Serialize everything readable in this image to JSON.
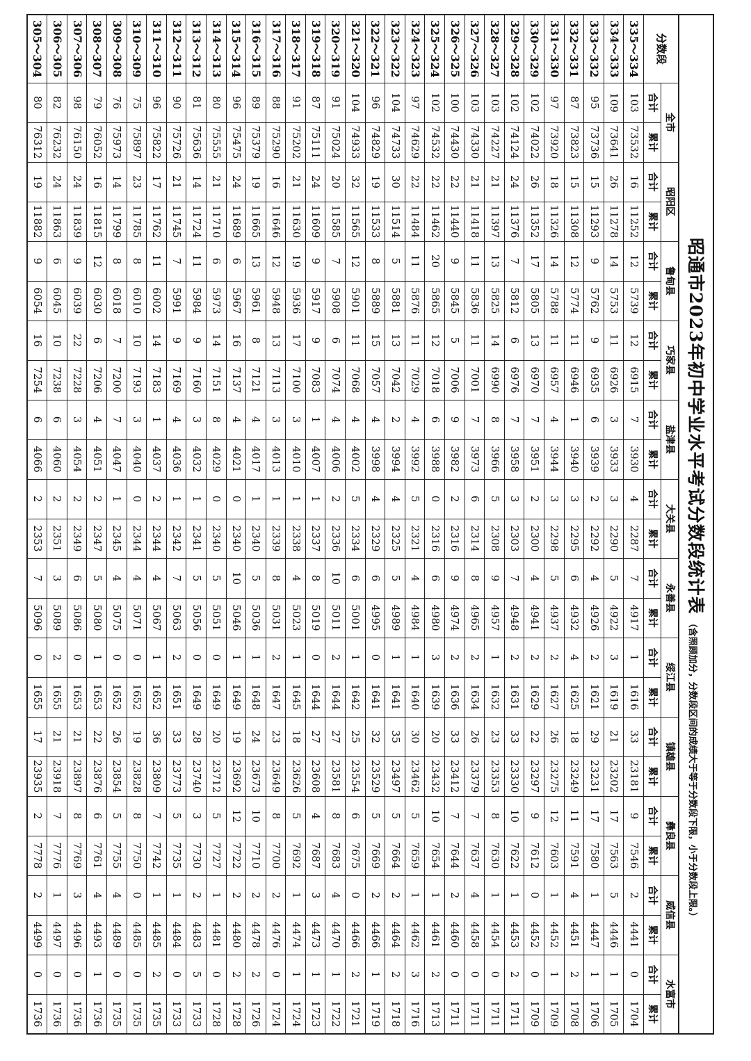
{
  "title": "昭通市2023年初中学业水平考试分数段统计表",
  "note": "（含照顾加分，分数段区间的成绩大于等于分数段下限，小于分数段上限。）",
  "header": {
    "score_label": "分数段",
    "regions": [
      "全市",
      "昭阳区",
      "鲁甸县",
      "巧家县",
      "盐津县",
      "大关县",
      "永善县",
      "绥江县",
      "镇雄县",
      "彝良县",
      "威信县",
      "水富市"
    ],
    "total_label": "合计",
    "cumulative_label": "累计"
  },
  "rows": [
    {
      "score": "335～334",
      "values": [
        103,
        73532,
        16,
        11252,
        12,
        5739,
        12,
        6915,
        7,
        3930,
        4,
        2287,
        7,
        4917,
        1,
        1616,
        33,
        23181,
        9,
        7546,
        2,
        4441,
        0,
        1704
      ]
    },
    {
      "score": "334～333",
      "values": [
        109,
        73641,
        26,
        11278,
        14,
        5753,
        11,
        6926,
        3,
        3933,
        3,
        2290,
        5,
        4922,
        3,
        1619,
        21,
        23202,
        17,
        7563,
        5,
        4446,
        1,
        1705
      ]
    },
    {
      "score": "333～332",
      "values": [
        95,
        73736,
        15,
        11293,
        9,
        5762,
        9,
        6935,
        6,
        3939,
        2,
        2292,
        4,
        4926,
        2,
        1621,
        29,
        23231,
        17,
        7580,
        1,
        4447,
        1,
        1706
      ]
    },
    {
      "score": "332～331",
      "values": [
        87,
        73823,
        15,
        11308,
        12,
        5774,
        11,
        6946,
        1,
        3940,
        3,
        2295,
        6,
        4932,
        4,
        1625,
        18,
        23249,
        11,
        7591,
        4,
        4451,
        2,
        1708
      ]
    },
    {
      "score": "331～330",
      "values": [
        97,
        73920,
        18,
        11326,
        14,
        5788,
        11,
        6957,
        4,
        3944,
        3,
        2298,
        5,
        4937,
        2,
        1627,
        26,
        23275,
        12,
        7603,
        1,
        4452,
        1,
        1709
      ]
    },
    {
      "score": "330～329",
      "values": [
        102,
        74022,
        26,
        11352,
        17,
        5805,
        13,
        6970,
        7,
        3951,
        2,
        2300,
        4,
        4941,
        2,
        1629,
        22,
        23297,
        9,
        7612,
        0,
        4452,
        0,
        1709
      ]
    },
    {
      "score": "329～328",
      "values": [
        102,
        74124,
        24,
        11376,
        7,
        5812,
        6,
        6976,
        7,
        3958,
        3,
        2303,
        7,
        4948,
        2,
        1631,
        33,
        23330,
        10,
        7622,
        1,
        4453,
        2,
        1711
      ]
    },
    {
      "score": "328～327",
      "values": [
        103,
        74227,
        21,
        11397,
        13,
        5825,
        14,
        6990,
        8,
        3966,
        5,
        2308,
        9,
        4957,
        1,
        1632,
        23,
        23353,
        8,
        7630,
        1,
        4454,
        0,
        1711
      ]
    },
    {
      "score": "327～326",
      "values": [
        103,
        74330,
        21,
        11418,
        11,
        5836,
        11,
        7001,
        7,
        3973,
        6,
        2314,
        8,
        4965,
        2,
        1634,
        26,
        23379,
        7,
        7637,
        4,
        4458,
        0,
        1711
      ]
    },
    {
      "score": "326～325",
      "values": [
        100,
        74430,
        22,
        11440,
        9,
        5845,
        5,
        7006,
        9,
        3982,
        2,
        2316,
        9,
        4974,
        2,
        1636,
        33,
        23412,
        7,
        7644,
        2,
        4460,
        0,
        1711
      ]
    },
    {
      "score": "325～324",
      "values": [
        102,
        74532,
        22,
        11462,
        20,
        5865,
        12,
        7018,
        6,
        3988,
        0,
        2316,
        6,
        4980,
        3,
        1639,
        20,
        23432,
        10,
        7654,
        1,
        4461,
        2,
        1713
      ]
    },
    {
      "score": "324～323",
      "values": [
        97,
        74629,
        22,
        11484,
        11,
        5876,
        11,
        7029,
        4,
        3992,
        5,
        2321,
        4,
        4984,
        1,
        1640,
        30,
        23462,
        5,
        7659,
        1,
        4462,
        3,
        1716
      ]
    },
    {
      "score": "323～322",
      "values": [
        104,
        74733,
        30,
        11514,
        5,
        5881,
        13,
        7042,
        2,
        3994,
        4,
        2325,
        5,
        4989,
        1,
        1641,
        35,
        23497,
        5,
        7664,
        2,
        4464,
        2,
        1718
      ]
    },
    {
      "score": "322～321",
      "values": [
        96,
        74829,
        19,
        11533,
        8,
        5889,
        15,
        7057,
        4,
        3998,
        4,
        2329,
        6,
        4995,
        0,
        1641,
        32,
        23529,
        5,
        7669,
        2,
        4466,
        1,
        1719
      ]
    },
    {
      "score": "321～320",
      "values": [
        104,
        74933,
        32,
        11565,
        12,
        5901,
        11,
        7068,
        4,
        4002,
        5,
        2334,
        6,
        5001,
        1,
        1642,
        25,
        23554,
        6,
        7675,
        0,
        4466,
        2,
        1721
      ]
    },
    {
      "score": "320～319",
      "values": [
        91,
        75024,
        20,
        11585,
        7,
        5908,
        6,
        7074,
        4,
        4006,
        2,
        2336,
        10,
        5011,
        2,
        1644,
        27,
        23581,
        8,
        7683,
        4,
        4470,
        1,
        1722
      ]
    },
    {
      "score": "319～318",
      "values": [
        87,
        75111,
        24,
        11609,
        9,
        5917,
        9,
        7083,
        1,
        4007,
        1,
        2337,
        8,
        5019,
        0,
        1644,
        27,
        23608,
        4,
        7687,
        3,
        4473,
        1,
        1723
      ]
    },
    {
      "score": "318～317",
      "values": [
        91,
        75202,
        21,
        11630,
        19,
        5936,
        17,
        7100,
        3,
        4010,
        1,
        2338,
        4,
        5023,
        1,
        1645,
        18,
        23626,
        5,
        7692,
        1,
        4474,
        1,
        1724
      ]
    },
    {
      "score": "317～316",
      "values": [
        88,
        75290,
        16,
        11646,
        12,
        5948,
        13,
        7113,
        3,
        4013,
        1,
        2339,
        8,
        5031,
        2,
        1647,
        23,
        23649,
        8,
        7700,
        2,
        4476,
        0,
        1724
      ]
    },
    {
      "score": "316～315",
      "values": [
        89,
        75379,
        19,
        11665,
        13,
        5961,
        8,
        7121,
        4,
        4017,
        1,
        2340,
        5,
        5036,
        1,
        1648,
        24,
        23673,
        10,
        7710,
        2,
        4478,
        2,
        1726
      ]
    },
    {
      "score": "315～314",
      "values": [
        96,
        75475,
        24,
        11689,
        6,
        5967,
        16,
        7137,
        4,
        4021,
        0,
        2340,
        10,
        5046,
        1,
        1649,
        19,
        23692,
        12,
        7722,
        2,
        4480,
        2,
        1728
      ]
    },
    {
      "score": "314～313",
      "values": [
        80,
        75555,
        21,
        11710,
        6,
        5973,
        14,
        7151,
        8,
        4029,
        0,
        2340,
        5,
        5051,
        0,
        1649,
        20,
        23712,
        5,
        7727,
        1,
        4481,
        0,
        1728
      ]
    },
    {
      "score": "313～312",
      "values": [
        81,
        75636,
        14,
        11724,
        11,
        5984,
        9,
        7160,
        3,
        4032,
        1,
        2341,
        5,
        5056,
        0,
        1649,
        28,
        23740,
        3,
        7730,
        2,
        4483,
        5,
        1733
      ]
    },
    {
      "score": "312～311",
      "values": [
        90,
        75726,
        21,
        11745,
        7,
        5991,
        9,
        7169,
        4,
        4036,
        1,
        2342,
        7,
        5063,
        2,
        1651,
        33,
        23773,
        5,
        7735,
        1,
        4484,
        0,
        1733
      ]
    },
    {
      "score": "311～310",
      "values": [
        96,
        75822,
        17,
        11762,
        11,
        6002,
        14,
        7183,
        1,
        4037,
        2,
        2344,
        4,
        5067,
        1,
        1652,
        36,
        23809,
        7,
        7742,
        1,
        4485,
        2,
        1735
      ]
    },
    {
      "score": "310～309",
      "values": [
        75,
        75897,
        23,
        11785,
        8,
        6010,
        10,
        7193,
        3,
        4040,
        0,
        2344,
        4,
        5071,
        0,
        1652,
        19,
        23828,
        8,
        7750,
        0,
        4485,
        0,
        1735
      ]
    },
    {
      "score": "309～308",
      "values": [
        76,
        75973,
        14,
        11799,
        8,
        6018,
        7,
        7200,
        7,
        4047,
        1,
        2345,
        4,
        5075,
        0,
        1652,
        26,
        23854,
        5,
        7755,
        4,
        4489,
        0,
        1735
      ]
    },
    {
      "score": "308～307",
      "values": [
        79,
        76052,
        16,
        11815,
        12,
        6030,
        6,
        7206,
        4,
        4051,
        2,
        2347,
        5,
        5080,
        1,
        1653,
        22,
        23876,
        6,
        7761,
        4,
        4493,
        1,
        1736
      ]
    },
    {
      "score": "307～306",
      "values": [
        98,
        76150,
        24,
        11839,
        9,
        6039,
        22,
        7228,
        3,
        4054,
        2,
        2349,
        6,
        5086,
        0,
        1653,
        21,
        23897,
        8,
        7769,
        3,
        4496,
        0,
        1736
      ]
    },
    {
      "score": "306～305",
      "values": [
        82,
        76232,
        24,
        11863,
        6,
        6045,
        10,
        7238,
        6,
        4060,
        2,
        2351,
        3,
        5089,
        2,
        1655,
        21,
        23918,
        7,
        7776,
        1,
        4497,
        0,
        1736
      ]
    },
    {
      "score": "305～304",
      "values": [
        80,
        76312,
        19,
        11882,
        9,
        6054,
        16,
        7254,
        6,
        4066,
        2,
        2353,
        7,
        5096,
        0,
        1655,
        17,
        23935,
        2,
        7778,
        2,
        4499,
        0,
        1736
      ]
    }
  ]
}
